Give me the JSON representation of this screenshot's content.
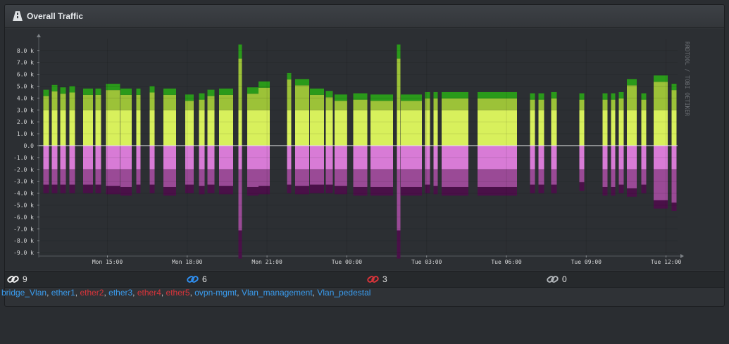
{
  "panel": {
    "title": "Overall Traffic",
    "icon": "road-icon"
  },
  "chart_data": {
    "type": "area",
    "watermark": "RRDTOOL / TOBI OETIKER",
    "y_ticks": [
      "8.0 k",
      "7.0 k",
      "6.0 k",
      "5.0 k",
      "4.0 k",
      "3.0 k",
      "2.0 k",
      "1.0 k",
      "0.0",
      "-1.0 k",
      "-2.0 k",
      "-3.0 k",
      "-4.0 k",
      "-5.0 k",
      "-6.0 k",
      "-7.0 k",
      "-8.0 k",
      "-9.0 k"
    ],
    "x_ticks": [
      "Mon 15:00",
      "Mon 18:00",
      "Mon 21:00",
      "Tue 00:00",
      "Tue 03:00",
      "Tue 06:00",
      "Tue 09:00",
      "Tue 12:00"
    ],
    "ylim": [
      -9500,
      8500
    ],
    "colors": {
      "in_light": "#d8f05c",
      "in_mid": "#9cc238",
      "in_dark": "#2a9a1a",
      "out_light": "#d87bd6",
      "out_mid": "#9a4a96",
      "out_dark": "#4a1048"
    },
    "bars": [
      {
        "x0": 54.5,
        "x1": 62.5,
        "in": 4700,
        "out": -4000
      },
      {
        "x0": 66.5,
        "x1": 74.5,
        "in": 5100,
        "out": -4000
      },
      {
        "x0": 78.5,
        "x1": 86.5,
        "in": 4900,
        "out": -4000
      },
      {
        "x0": 91.5,
        "x1": 99.5,
        "in": 5000,
        "out": -4000
      },
      {
        "x0": 111,
        "x1": 125,
        "in": 4800,
        "out": -4000
      },
      {
        "x0": 128.5,
        "x1": 136.5,
        "in": 4800,
        "out": -4000
      },
      {
        "x0": 143.5,
        "x1": 163.5,
        "in": 5200,
        "out": -4100
      },
      {
        "x0": 164,
        "x1": 180,
        "in": 4800,
        "out": -4200
      },
      {
        "x0": 186.5,
        "x1": 192.5,
        "in": 4800,
        "out": -4000
      },
      {
        "x0": 205.5,
        "x1": 212.5,
        "in": 5000,
        "out": -4000
      },
      {
        "x0": 225,
        "x1": 243,
        "in": 4800,
        "out": -4200
      },
      {
        "x0": 256,
        "x1": 268,
        "in": 4300,
        "out": -4000
      },
      {
        "x0": 275.5,
        "x1": 283.5,
        "in": 4400,
        "out": -4100
      },
      {
        "x0": 287.5,
        "x1": 297.5,
        "in": 4700,
        "out": -4000
      },
      {
        "x0": 304,
        "x1": 324,
        "in": 4800,
        "out": -4100
      },
      {
        "x0": 331.5,
        "x1": 336.5,
        "in": 8500,
        "out": -9500
      },
      {
        "x0": 344,
        "x1": 360,
        "in": 4900,
        "out": -4200
      },
      {
        "x0": 360,
        "x1": 376,
        "in": 5400,
        "out": -4100
      },
      {
        "x0": 400.5,
        "x1": 406.5,
        "in": 6100,
        "out": -4000
      },
      {
        "x0": 412,
        "x1": 432,
        "in": 5600,
        "out": -4100
      },
      {
        "x0": 433,
        "x1": 453,
        "in": 4800,
        "out": -4000
      },
      {
        "x0": 455.5,
        "x1": 465.5,
        "in": 4600,
        "out": -4000
      },
      {
        "x0": 468,
        "x1": 486,
        "in": 4300,
        "out": -4100
      },
      {
        "x0": 494.5,
        "x1": 514.5,
        "in": 4400,
        "out": -4200
      },
      {
        "x0": 519,
        "x1": 551,
        "in": 4300,
        "out": -4200
      },
      {
        "x0": 556.5,
        "x1": 561.5,
        "in": 8500,
        "out": -9500
      },
      {
        "x0": 562,
        "x1": 592,
        "in": 4300,
        "out": -4200
      },
      {
        "x0": 596.5,
        "x1": 603.5,
        "in": 4500,
        "out": -4000
      },
      {
        "x0": 608.5,
        "x1": 614.5,
        "in": 4500,
        "out": -4100
      },
      {
        "x0": 620,
        "x1": 658,
        "in": 4500,
        "out": -4200
      },
      {
        "x0": 671,
        "x1": 727,
        "in": 4500,
        "out": -4200
      },
      {
        "x0": 745.5,
        "x1": 752.5,
        "in": 4400,
        "out": -4000
      },
      {
        "x0": 757.5,
        "x1": 765.5,
        "in": 4400,
        "out": -4000
      },
      {
        "x0": 775.5,
        "x1": 783.5,
        "in": 4500,
        "out": -4000
      },
      {
        "x0": 815.5,
        "x1": 822.5,
        "in": 4400,
        "out": -3800
      },
      {
        "x0": 848.5,
        "x1": 855.5,
        "in": 4400,
        "out": -4200
      },
      {
        "x0": 860.5,
        "x1": 866.5,
        "in": 4400,
        "out": -4200
      },
      {
        "x0": 871.5,
        "x1": 878.5,
        "in": 4500,
        "out": -4000
      },
      {
        "x0": 883,
        "x1": 897,
        "in": 5600,
        "out": -4300
      },
      {
        "x0": 903.5,
        "x1": 910.5,
        "in": 4400,
        "out": -4000
      },
      {
        "x0": 921,
        "x1": 941,
        "in": 5900,
        "out": -5300
      },
      {
        "x0": 946.5,
        "x1": 953.5,
        "in": 5200,
        "out": -5500
      }
    ]
  },
  "counters": [
    {
      "icon": "link-icon",
      "color": "#f2f2f2",
      "value": "9"
    },
    {
      "icon": "link-icon",
      "color": "#2f8ff0",
      "value": "6"
    },
    {
      "icon": "link-icon",
      "color": "#d9343a",
      "value": "3"
    },
    {
      "icon": "link-icon",
      "color": "#b0b4b8",
      "value": "0"
    }
  ],
  "interfaces": [
    {
      "name": "bridge_Vlan",
      "status": "up"
    },
    {
      "name": "ether1",
      "status": "up"
    },
    {
      "name": "ether2",
      "status": "down"
    },
    {
      "name": "ether3",
      "status": "up"
    },
    {
      "name": "ether4",
      "status": "down"
    },
    {
      "name": "ether5",
      "status": "down"
    },
    {
      "name": "ovpn-mgmt",
      "status": "up"
    },
    {
      "name": "Vlan_management",
      "status": "up"
    },
    {
      "name": "Vlan_pedestal",
      "status": "up"
    }
  ],
  "separator": ", "
}
